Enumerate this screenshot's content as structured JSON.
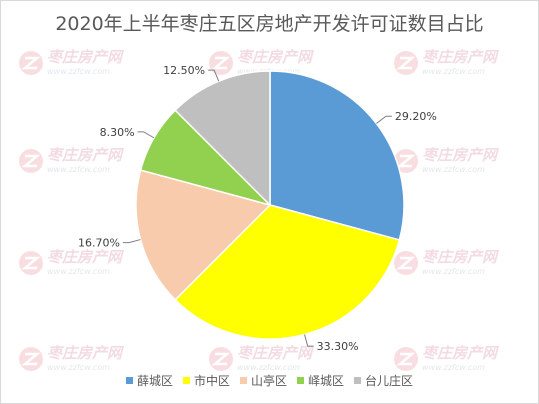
{
  "chart_data": {
    "type": "pie",
    "title": "2020年上半年枣庄五区房地产开发许可证数目占比",
    "categories": [
      "薛城区",
      "市中区",
      "山亭区",
      "峄城区",
      "台儿庄区"
    ],
    "values": [
      29.2,
      33.3,
      16.7,
      8.3,
      12.5
    ],
    "data_labels": [
      "29.20%",
      "33.30%",
      "16.70%",
      "8.30%",
      "12.50%"
    ],
    "colors": [
      "#5b9bd5",
      "#ffff00",
      "#f8cbad",
      "#92d050",
      "#bfbfbf"
    ],
    "start_angle_deg": 0,
    "direction": "clockwise",
    "legend_position": "bottom"
  },
  "watermark": {
    "text_cn": "枣庄房产网",
    "text_url": "www.zzfcw.com"
  }
}
